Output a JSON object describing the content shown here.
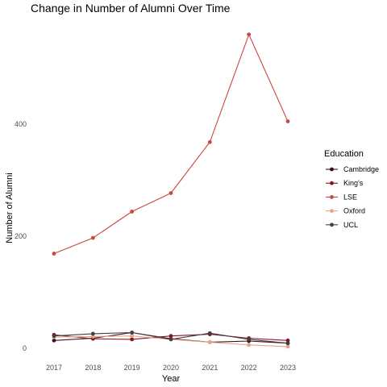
{
  "chart_data": {
    "type": "line",
    "title": "Change in Number of Alumni Over Time",
    "xlabel": "Year",
    "ylabel": "Number of Alumni",
    "x": [
      2017,
      2018,
      2019,
      2020,
      2021,
      2022,
      2023
    ],
    "xticks": [
      "2017",
      "2018",
      "2019",
      "2020",
      "2021",
      "2022",
      "2023"
    ],
    "yticks": [
      0,
      200,
      400
    ],
    "ylim": [
      -20,
      570
    ],
    "grid": false,
    "legend": {
      "title": "Education",
      "position": "right"
    },
    "series": [
      {
        "name": "Cambridge",
        "color": "#3a0f1e",
        "values": [
          14,
          18,
          28,
          17,
          11,
          13,
          9
        ]
      },
      {
        "name": "King's",
        "color": "#8a1226",
        "values": [
          24,
          17,
          16,
          22,
          25,
          18,
          14
        ]
      },
      {
        "name": "LSE",
        "color": "#c9483f",
        "values": [
          169,
          197,
          244,
          277,
          368,
          560,
          405
        ]
      },
      {
        "name": "Oxford",
        "color": "#e8a585",
        "values": [
          20,
          21,
          22,
          16,
          11,
          6,
          3
        ]
      },
      {
        "name": "UCL",
        "color": "#404040",
        "values": [
          22,
          26,
          28,
          16,
          27,
          16,
          9
        ]
      }
    ]
  }
}
